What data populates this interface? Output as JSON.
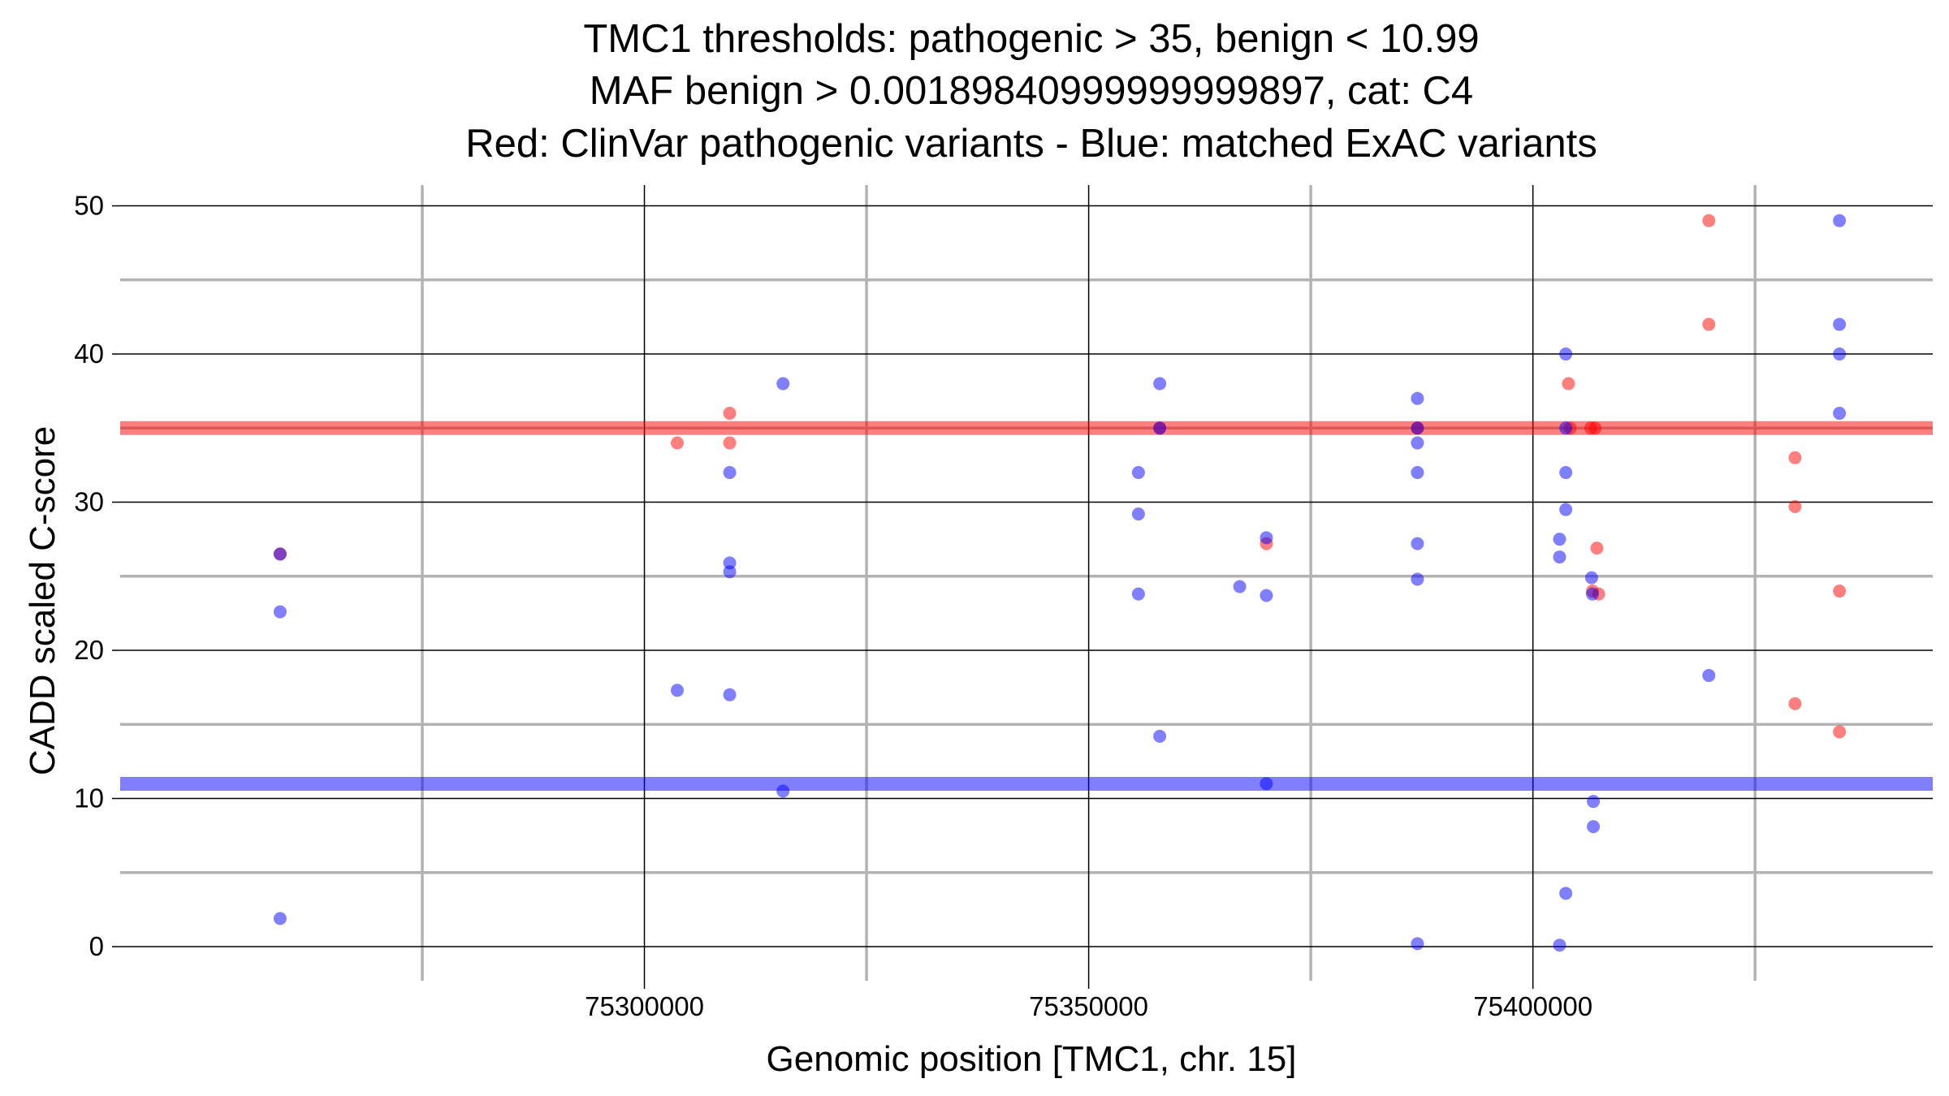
{
  "chart_data": {
    "type": "scatter",
    "title": [
      "TMC1 thresholds: pathogenic > 35, benign < 10.99",
      "MAF benign > 0.00189840999999999897, cat: C4",
      "Red: ClinVar pathogenic variants - Blue: matched ExAC variants"
    ],
    "xlabel": "Genomic position [TMC1, chr. 15]",
    "ylabel": "CADD scaled C-score",
    "xlim": [
      75241000,
      75445000
    ],
    "ylim": [
      -2.3,
      51.4
    ],
    "x_major_ticks": [
      75300000,
      75350000,
      75400000
    ],
    "x_minor_ticks": [
      75275000,
      75325000,
      75375000,
      75425000
    ],
    "y_major_ticks": [
      0,
      10,
      20,
      30,
      40,
      50
    ],
    "y_minor_ticks": [
      5,
      15,
      25,
      35,
      45
    ],
    "grid": true,
    "legend": "none",
    "thresholds": [
      {
        "name": "pathogenic",
        "value": 35,
        "color": "#ff0000"
      },
      {
        "name": "benign",
        "value": 10.99,
        "color": "#0000ff"
      }
    ],
    "colors": {
      "pathogenic": "#ff0000",
      "benign": "#0000ff"
    },
    "series": [
      {
        "color": "#ff0000",
        "points": [
          [
            75259000,
            26.5
          ],
          [
            75303700,
            34
          ],
          [
            75309600,
            36
          ],
          [
            75309600,
            34
          ],
          [
            75358000,
            35
          ],
          [
            75370000,
            27.2
          ],
          [
            75387000,
            35
          ],
          [
            75404000,
            38
          ],
          [
            75404200,
            35
          ],
          [
            75406500,
            35
          ],
          [
            75407000,
            35
          ],
          [
            75406700,
            24
          ],
          [
            75407200,
            26.9
          ],
          [
            75407400,
            23.8
          ],
          [
            75419800,
            49
          ],
          [
            75419800,
            42
          ],
          [
            75429500,
            33
          ],
          [
            75429500,
            29.7
          ],
          [
            75429500,
            16.4
          ],
          [
            75434500,
            24
          ],
          [
            75434500,
            14.5
          ]
        ]
      },
      {
        "color": "#0000ff",
        "points": [
          [
            75259000,
            26.5
          ],
          [
            75259000,
            22.6
          ],
          [
            75259000,
            1.9
          ],
          [
            75303700,
            17.3
          ],
          [
            75309600,
            32
          ],
          [
            75309600,
            25.9
          ],
          [
            75309600,
            25.3
          ],
          [
            75309600,
            17
          ],
          [
            75315600,
            38
          ],
          [
            75315600,
            10.5
          ],
          [
            75355600,
            32
          ],
          [
            75355600,
            29.2
          ],
          [
            75355600,
            23.8
          ],
          [
            75358000,
            38
          ],
          [
            75358000,
            35
          ],
          [
            75358000,
            14.2
          ],
          [
            75367000,
            24.3
          ],
          [
            75370000,
            27.6
          ],
          [
            75370000,
            23.7
          ],
          [
            75370000,
            11
          ],
          [
            75387000,
            37
          ],
          [
            75387000,
            35
          ],
          [
            75387000,
            34
          ],
          [
            75387000,
            32
          ],
          [
            75387000,
            27.2
          ],
          [
            75387000,
            24.8
          ],
          [
            75387000,
            0.2
          ],
          [
            75403700,
            40
          ],
          [
            75403700,
            35
          ],
          [
            75403700,
            32
          ],
          [
            75403700,
            29.5
          ],
          [
            75403700,
            3.6
          ],
          [
            75403000,
            27.5
          ],
          [
            75403000,
            26.3
          ],
          [
            75403000,
            0.1
          ],
          [
            75406600,
            24.9
          ],
          [
            75406700,
            23.8
          ],
          [
            75406800,
            9.8
          ],
          [
            75406800,
            8.1
          ],
          [
            75419800,
            18.3
          ],
          [
            75434500,
            49
          ],
          [
            75434500,
            42
          ],
          [
            75434500,
            40
          ],
          [
            75434500,
            36
          ]
        ]
      }
    ]
  }
}
